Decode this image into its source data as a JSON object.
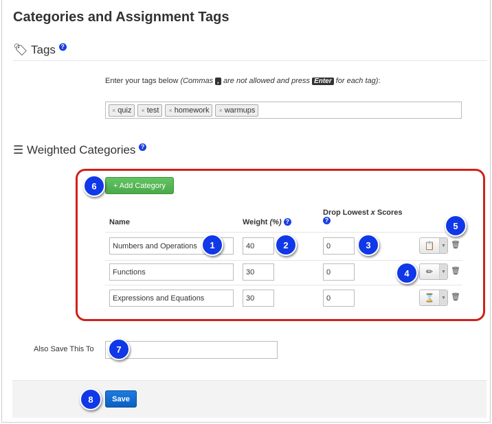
{
  "page": {
    "title": "Categories and Assignment Tags"
  },
  "tags": {
    "heading": "Tags",
    "help": "?",
    "instruction_prefix": "Enter your tags below ",
    "instruction_open": "(Commas ",
    "comma_key": ",",
    "instruction_mid": " are not allowed and press ",
    "enter_key": "Enter",
    "instruction_end": " for each tag)",
    "instruction_colon": ":",
    "items": [
      "quiz",
      "test",
      "homework",
      "warmups"
    ],
    "remove_glyph": "×"
  },
  "weighted": {
    "heading": "Weighted Categories",
    "help": "?",
    "add_button": "+ Add Category",
    "headers": {
      "name": "Name",
      "weight": "Weight ",
      "weight_unit": "(%)",
      "drop": "Drop Lowest ",
      "drop_x": "x",
      "drop_end": " Scores"
    },
    "rows": [
      {
        "name": "Numbers and Operations",
        "weight": "40",
        "drop": "0",
        "icon": "clipboard-icon",
        "glyph": "📋"
      },
      {
        "name": "Functions",
        "weight": "30",
        "drop": "0",
        "icon": "pencil-icon",
        "glyph": "✏"
      },
      {
        "name": "Expressions and Equations",
        "weight": "30",
        "drop": "0",
        "icon": "hourglass-icon",
        "glyph": "⌛"
      }
    ]
  },
  "also_save": {
    "label": "Also Save This To",
    "value": ""
  },
  "save_button": "Save",
  "badges": [
    "1",
    "2",
    "3",
    "4",
    "5",
    "6",
    "7",
    "8"
  ],
  "colors": {
    "highlight": "#d0201a",
    "badge": "#1038e8",
    "add": "#4aa94a",
    "save": "#0b5fc2"
  }
}
